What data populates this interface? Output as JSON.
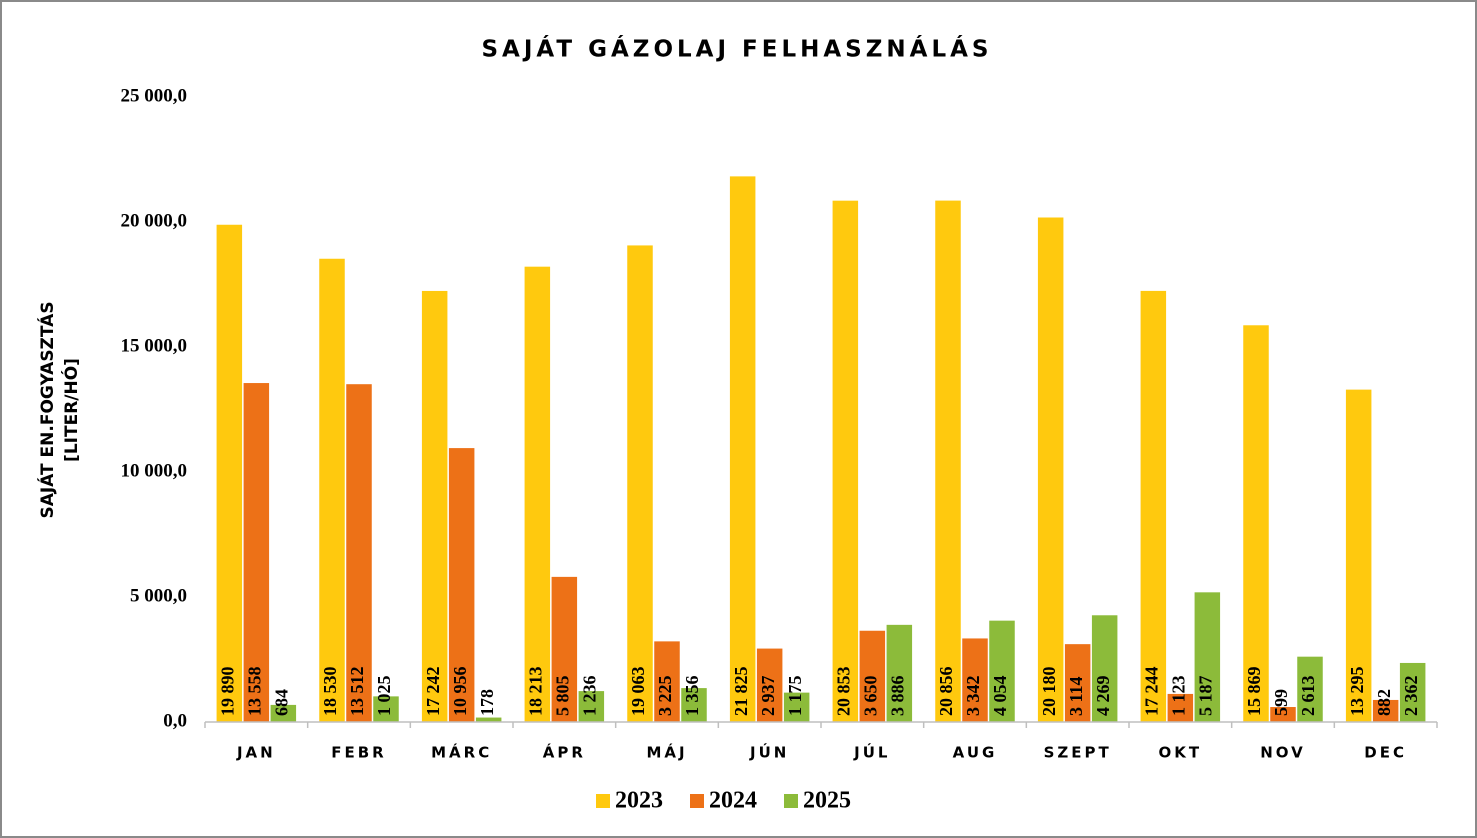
{
  "chart_data": {
    "type": "bar",
    "title": "SAJÁT GÁZOLAJ FELHASZNÁLÁS",
    "y_label": [
      "SAJÁT EN.FOGYASZTÁS",
      "[LITER/HÓ]"
    ],
    "categories": [
      "JAN",
      "FEBR",
      "MÁRC",
      "ÁPR",
      "MÁJ",
      "JÚN",
      "JÚL",
      "AUG",
      "SZEPT",
      "OKT",
      "NOV",
      "DEC"
    ],
    "series": [
      {
        "name": "2023",
        "color": "#ffc90e",
        "values": [
          19890,
          18530,
          17242,
          18213,
          19063,
          21825,
          20853,
          20856,
          20180,
          17244,
          15869,
          13295
        ],
        "value_labels": [
          "19 890",
          "18 530",
          "17 242",
          "18 213",
          "19 063",
          "21 825",
          "20 853",
          "20 856",
          "20 180",
          "17 244",
          "15 869",
          "13 295"
        ]
      },
      {
        "name": "2024",
        "color": "#ed7117",
        "values": [
          13558,
          13512,
          10956,
          5805,
          3225,
          2937,
          3650,
          3342,
          3114,
          1123,
          599,
          882
        ],
        "value_labels": [
          "13 558",
          "13 512",
          "10 956",
          "5 805",
          "3 225",
          "2 937",
          "3 650",
          "3 342",
          "3 114",
          "1 123",
          "599",
          "882"
        ]
      },
      {
        "name": "2025",
        "color": "#8cbb3a",
        "values": [
          684,
          1025,
          178,
          1236,
          1356,
          1175,
          3886,
          4054,
          4269,
          5187,
          2613,
          2362
        ],
        "value_labels": [
          "684",
          "1 025",
          "178",
          "1 236",
          "1 356",
          "1 175",
          "3 886",
          "4 054",
          "4 269",
          "5 187",
          "2 613",
          "2 362"
        ]
      }
    ],
    "ylim": [
      0,
      25000
    ],
    "yticks": [
      {
        "value": 0,
        "label": "0,0"
      },
      {
        "value": 5000,
        "label": "5 000,0"
      },
      {
        "value": 10000,
        "label": "10 000,0"
      },
      {
        "value": 15000,
        "label": "15 000,0"
      },
      {
        "value": 20000,
        "label": "20 000,0"
      },
      {
        "value": 25000,
        "label": "25 000,0"
      }
    ],
    "grid": false,
    "legend": "bottom"
  }
}
